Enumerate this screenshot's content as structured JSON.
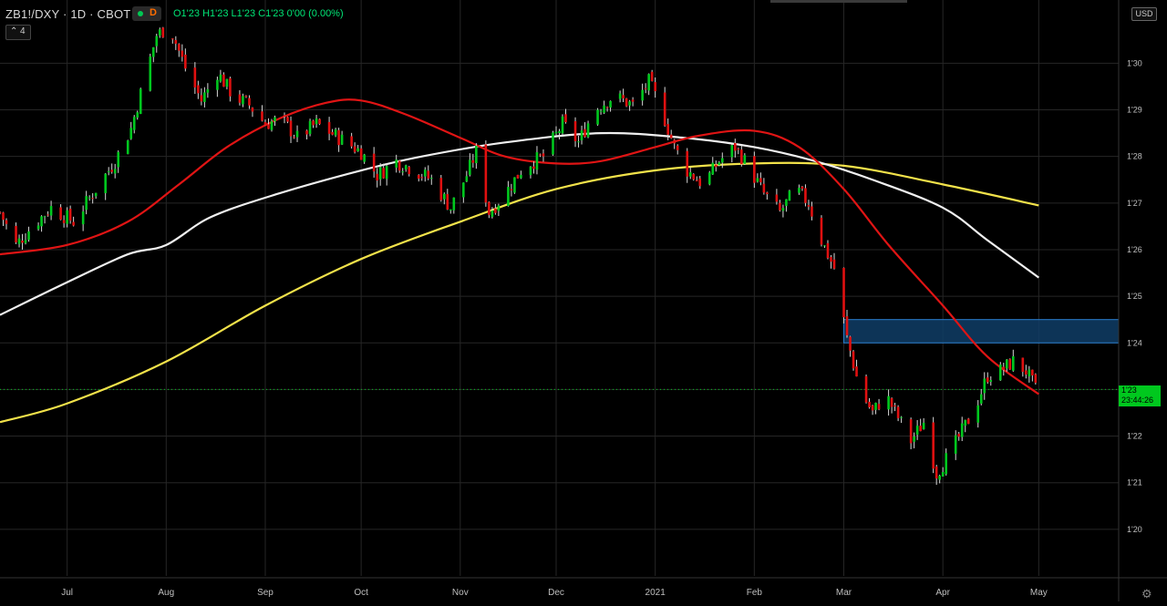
{
  "header": {
    "symbol": "ZB1!/DXY · 1D · CBOT",
    "mode_letter": "D",
    "ohlc": "O1'23  H1'23  L1'23  C1'23  0'00 (0.00%)",
    "indicators_count": "4",
    "indicators_chevron": "⌃"
  },
  "currency": "USD",
  "price_ticket": {
    "price": "1'23",
    "timer": "23:44:26"
  },
  "colors": {
    "up": "#00c81e",
    "down": "#e01010",
    "ma_red": "#e01414",
    "ma_white": "#f0f0f0",
    "ma_yellow": "#f2e24a",
    "zone": "#0f3d66",
    "grid": "#262626"
  },
  "chart_data": {
    "type": "candlestick",
    "y_labels": [
      "1'30",
      "1'29",
      "1'28",
      "1'27",
      "1'26",
      "1'25",
      "1'24",
      "1'23",
      "1'22",
      "1'21",
      "1'20"
    ],
    "y_values": [
      130,
      129,
      128,
      127,
      126,
      125,
      124,
      123,
      122,
      121,
      120
    ],
    "x_labels": [
      "Jul",
      "Aug",
      "Sep",
      "Oct",
      "Nov",
      "Dec",
      "2021",
      "Feb",
      "Mar",
      "Apr",
      "May"
    ],
    "x_dates": [
      "2020-07-01",
      "2020-08-01",
      "2020-09-01",
      "2020-10-01",
      "2020-11-01",
      "2020-12-01",
      "2021-01-01",
      "2021-02-01",
      "2021-03-01",
      "2021-04-01",
      "2021-05-01"
    ],
    "x_range": [
      "2020-06-10",
      "2021-05-26"
    ],
    "y_range": [
      119.0,
      131.2
    ],
    "last_price": 123.0,
    "zone": {
      "y_low": 124.0,
      "y_high": 124.5,
      "x_start": "2021-03-01"
    },
    "price_path": [
      [
        "2020-06-10",
        126.8
      ],
      [
        "2020-06-15",
        126.1
      ],
      [
        "2020-06-20",
        126.5
      ],
      [
        "2020-06-26",
        126.9
      ],
      [
        "2020-07-03",
        126.6
      ],
      [
        "2020-07-10",
        127.3
      ],
      [
        "2020-07-16",
        127.9
      ],
      [
        "2020-07-21",
        128.6
      ],
      [
        "2020-07-25",
        129.6
      ],
      [
        "2020-07-29",
        130.6
      ],
      [
        "2020-08-02",
        130.8
      ],
      [
        "2020-08-07",
        129.9
      ],
      [
        "2020-08-12",
        129.2
      ],
      [
        "2020-08-17",
        129.8
      ],
      [
        "2020-08-22",
        129.3
      ],
      [
        "2020-08-27",
        129.1
      ],
      [
        "2020-09-01",
        128.7
      ],
      [
        "2020-09-06",
        128.8
      ],
      [
        "2020-09-11",
        128.4
      ],
      [
        "2020-09-17",
        128.7
      ],
      [
        "2020-09-24",
        128.4
      ],
      [
        "2020-10-01",
        128.1
      ],
      [
        "2020-10-06",
        127.6
      ],
      [
        "2020-10-12",
        127.9
      ],
      [
        "2020-10-18",
        127.7
      ],
      [
        "2020-10-23",
        127.5
      ],
      [
        "2020-10-29",
        126.9
      ],
      [
        "2020-11-03",
        127.6
      ],
      [
        "2020-11-06",
        128.1
      ],
      [
        "2020-11-10",
        126.8
      ],
      [
        "2020-11-15",
        127.2
      ],
      [
        "2020-11-21",
        127.8
      ],
      [
        "2020-11-27",
        128.0
      ],
      [
        "2020-12-03",
        128.7
      ],
      [
        "2020-12-08",
        128.3
      ],
      [
        "2020-12-13",
        129.0
      ],
      [
        "2020-12-19",
        129.3
      ],
      [
        "2020-12-25",
        129.1
      ],
      [
        "2020-12-30",
        129.6
      ],
      [
        "2021-01-03",
        129.0
      ],
      [
        "2021-01-07",
        128.2
      ],
      [
        "2021-01-11",
        127.7
      ],
      [
        "2021-01-16",
        127.4
      ],
      [
        "2021-01-21",
        127.9
      ],
      [
        "2021-01-26",
        128.2
      ],
      [
        "2021-01-30",
        127.8
      ],
      [
        "2021-02-04",
        127.2
      ],
      [
        "2021-02-09",
        126.8
      ],
      [
        "2021-02-14",
        127.3
      ],
      [
        "2021-02-18",
        127.0
      ],
      [
        "2021-02-22",
        126.2
      ],
      [
        "2021-02-26",
        125.6
      ],
      [
        "2021-03-02",
        124.1
      ],
      [
        "2021-03-06",
        123.0
      ],
      [
        "2021-03-10",
        122.5
      ],
      [
        "2021-03-14",
        122.9
      ],
      [
        "2021-03-18",
        122.4
      ],
      [
        "2021-03-22",
        121.9
      ],
      [
        "2021-03-26",
        122.3
      ],
      [
        "2021-03-30",
        121.2
      ],
      [
        "2021-04-03",
        121.6
      ],
      [
        "2021-04-07",
        122.1
      ],
      [
        "2021-04-11",
        122.6
      ],
      [
        "2021-04-15",
        123.3
      ],
      [
        "2021-04-19",
        123.4
      ],
      [
        "2021-04-23",
        123.6
      ],
      [
        "2021-04-27",
        123.4
      ],
      [
        "2021-04-30",
        123.0
      ]
    ],
    "ma_red": [
      [
        "2020-06-10",
        125.9
      ],
      [
        "2020-07-01",
        126.1
      ],
      [
        "2020-07-20",
        126.6
      ],
      [
        "2020-08-05",
        127.4
      ],
      [
        "2020-08-20",
        128.2
      ],
      [
        "2020-09-05",
        128.8
      ],
      [
        "2020-09-20",
        129.15
      ],
      [
        "2020-10-01",
        129.2
      ],
      [
        "2020-10-15",
        128.9
      ],
      [
        "2020-11-01",
        128.4
      ],
      [
        "2020-11-15",
        128.0
      ],
      [
        "2020-12-01",
        127.85
      ],
      [
        "2020-12-15",
        127.9
      ],
      [
        "2021-01-01",
        128.2
      ],
      [
        "2021-01-15",
        128.45
      ],
      [
        "2021-02-01",
        128.55
      ],
      [
        "2021-02-15",
        128.2
      ],
      [
        "2021-03-01",
        127.3
      ],
      [
        "2021-03-15",
        126.1
      ],
      [
        "2021-04-01",
        124.8
      ],
      [
        "2021-04-15",
        123.7
      ],
      [
        "2021-05-01",
        122.9
      ]
    ],
    "ma_white": [
      [
        "2020-06-10",
        124.6
      ],
      [
        "2020-07-01",
        125.3
      ],
      [
        "2020-07-20",
        125.9
      ],
      [
        "2020-08-01",
        126.1
      ],
      [
        "2020-08-15",
        126.7
      ],
      [
        "2020-09-05",
        127.2
      ],
      [
        "2020-10-01",
        127.7
      ],
      [
        "2020-10-20",
        128.0
      ],
      [
        "2020-11-15",
        128.3
      ],
      [
        "2020-12-15",
        128.5
      ],
      [
        "2021-01-10",
        128.4
      ],
      [
        "2021-02-01",
        128.2
      ],
      [
        "2021-02-20",
        127.9
      ],
      [
        "2021-03-10",
        127.5
      ],
      [
        "2021-04-01",
        126.9
      ],
      [
        "2021-04-15",
        126.2
      ],
      [
        "2021-05-01",
        125.4
      ]
    ],
    "ma_yellow": [
      [
        "2020-06-10",
        122.3
      ],
      [
        "2020-07-01",
        122.7
      ],
      [
        "2020-08-01",
        123.6
      ],
      [
        "2020-09-01",
        124.8
      ],
      [
        "2020-10-01",
        125.8
      ],
      [
        "2020-11-01",
        126.6
      ],
      [
        "2020-12-01",
        127.3
      ],
      [
        "2021-01-01",
        127.7
      ],
      [
        "2021-02-01",
        127.85
      ],
      [
        "2021-03-01",
        127.8
      ],
      [
        "2021-04-01",
        127.4
      ],
      [
        "2021-05-01",
        126.95
      ]
    ]
  }
}
